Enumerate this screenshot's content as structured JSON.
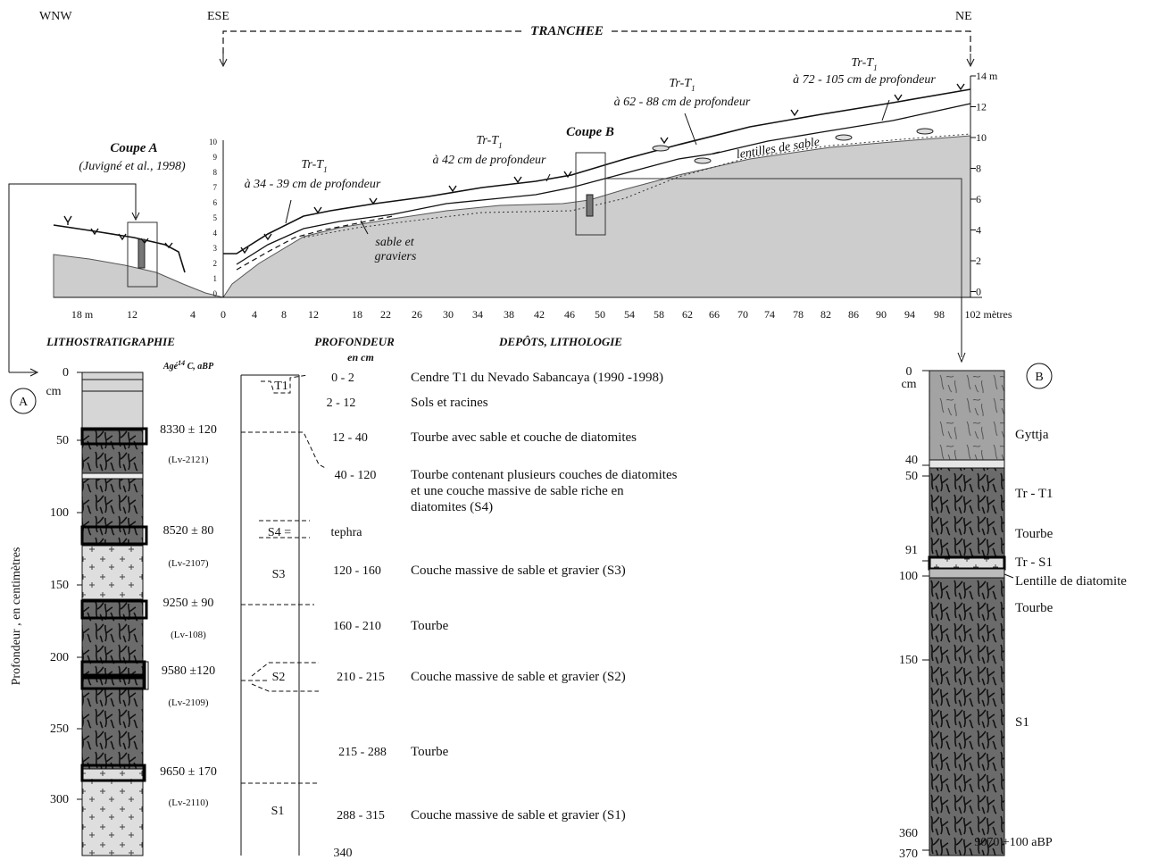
{
  "directions": {
    "wnw": "WNW",
    "ese": "ESE",
    "ne": "NE"
  },
  "tranchee": "TRANCHEE",
  "coupe_a": {
    "title": "Coupe A",
    "ref": "(Juvigné et al., 1998)"
  },
  "coupe_b": {
    "title": "Coupe B"
  },
  "tr_labels": [
    {
      "name": "Tr-T",
      "sub": "1",
      "depth": "à 34 - 39 cm de profondeur"
    },
    {
      "name": "Tr-T",
      "sub": "1",
      "depth": "à 42 cm de profondeur"
    },
    {
      "name": "Tr-T",
      "sub": "1",
      "depth": "à 62 - 88 cm de profondeur"
    },
    {
      "name": "Tr-T",
      "sub": "1",
      "depth": "à 72 - 105 cm de profondeur"
    }
  ],
  "sable_graviers": [
    "sable et",
    "graviers"
  ],
  "lentilles": "lentilles de sable",
  "right_axis": [
    "14 m",
    "12",
    "10",
    "8",
    "6",
    "4",
    "2",
    "0"
  ],
  "left_small_axis": [
    "10",
    "9",
    "8",
    "7",
    "6",
    "5",
    "4",
    "3",
    "2",
    "1",
    "0"
  ],
  "x_axis": [
    "18 m",
    "12",
    "4",
    "0",
    "4",
    "8",
    "12",
    "18",
    "22",
    "26",
    "30",
    "34",
    "38",
    "42",
    "46",
    "50",
    "54",
    "58",
    "62",
    "66",
    "70",
    "74",
    "78",
    "82",
    "86",
    "90",
    "94",
    "98",
    "102 mètres"
  ],
  "headers": {
    "litho": "LITHOSTRATIGRAPHIE",
    "prof": "PROFONDEUR",
    "prof_unit": "en cm",
    "depots": "DEPÔTS, LITHOLOGIE",
    "age_pre": "Agé",
    "age_sup": "14",
    "age_post": " C, aBP"
  },
  "marker_a": "A",
  "marker_b": "B",
  "vertical_label": "Profondeur , en centimètres",
  "col_a_ticks": [
    "0",
    "cm",
    "50",
    "100",
    "150",
    "200",
    "250",
    "300"
  ],
  "ages": [
    {
      "age": "8330 ± 120",
      "lab": "(Lv-2121)"
    },
    {
      "age": "8520 ± 80",
      "lab": "(Lv-2107)"
    },
    {
      "age": "9250 ± 90",
      "lab": "(Lv-108)"
    },
    {
      "age": "9580 ±120",
      "lab": "(Lv-2109)"
    },
    {
      "age": "9650 ± 170",
      "lab": "(Lv-2110)"
    }
  ],
  "units": [
    "T1",
    "S4 =",
    "S3",
    "S2",
    "S1"
  ],
  "depth_rows": [
    {
      "depth": "0 - 2",
      "desc": [
        "Cendre T1 du Nevado Sabancaya (1990 -1998)"
      ]
    },
    {
      "depth": "2 - 12",
      "desc": [
        "Sols et racines"
      ]
    },
    {
      "depth": "12 - 40",
      "desc": [
        "Tourbe avec sable et couche de diatomites"
      ]
    },
    {
      "depth": "40 - 120",
      "desc": [
        "Tourbe contenant plusieurs couches de diatomites",
        "et une couche massive de sable riche en",
        "diatomites (S4)"
      ]
    },
    {
      "depth": "tephra",
      "desc": []
    },
    {
      "depth": "120 - 160",
      "desc": [
        "Couche massive de sable et gravier (S3)"
      ]
    },
    {
      "depth": "160 - 210",
      "desc": [
        "Tourbe"
      ]
    },
    {
      "depth": "210 - 215",
      "desc": [
        "Couche massive de sable et gravier (S2)"
      ]
    },
    {
      "depth": "215 - 288",
      "desc": [
        "Tourbe"
      ]
    },
    {
      "depth": "288 - 315",
      "desc": [
        "Couche massive de sable et gravier (S1)"
      ]
    },
    {
      "depth": "340",
      "desc": []
    }
  ],
  "col_b_ticks": [
    "0",
    "cm",
    "40",
    "50",
    "91",
    "100",
    "150",
    "360",
    "370"
  ],
  "col_b_labels": [
    "Gyttja",
    "Tr - T1",
    "Tourbe",
    "Tr - S1",
    "Lentille de diatomite",
    "Tourbe",
    "S1"
  ],
  "col_b_date": "9070 +100 aBP"
}
